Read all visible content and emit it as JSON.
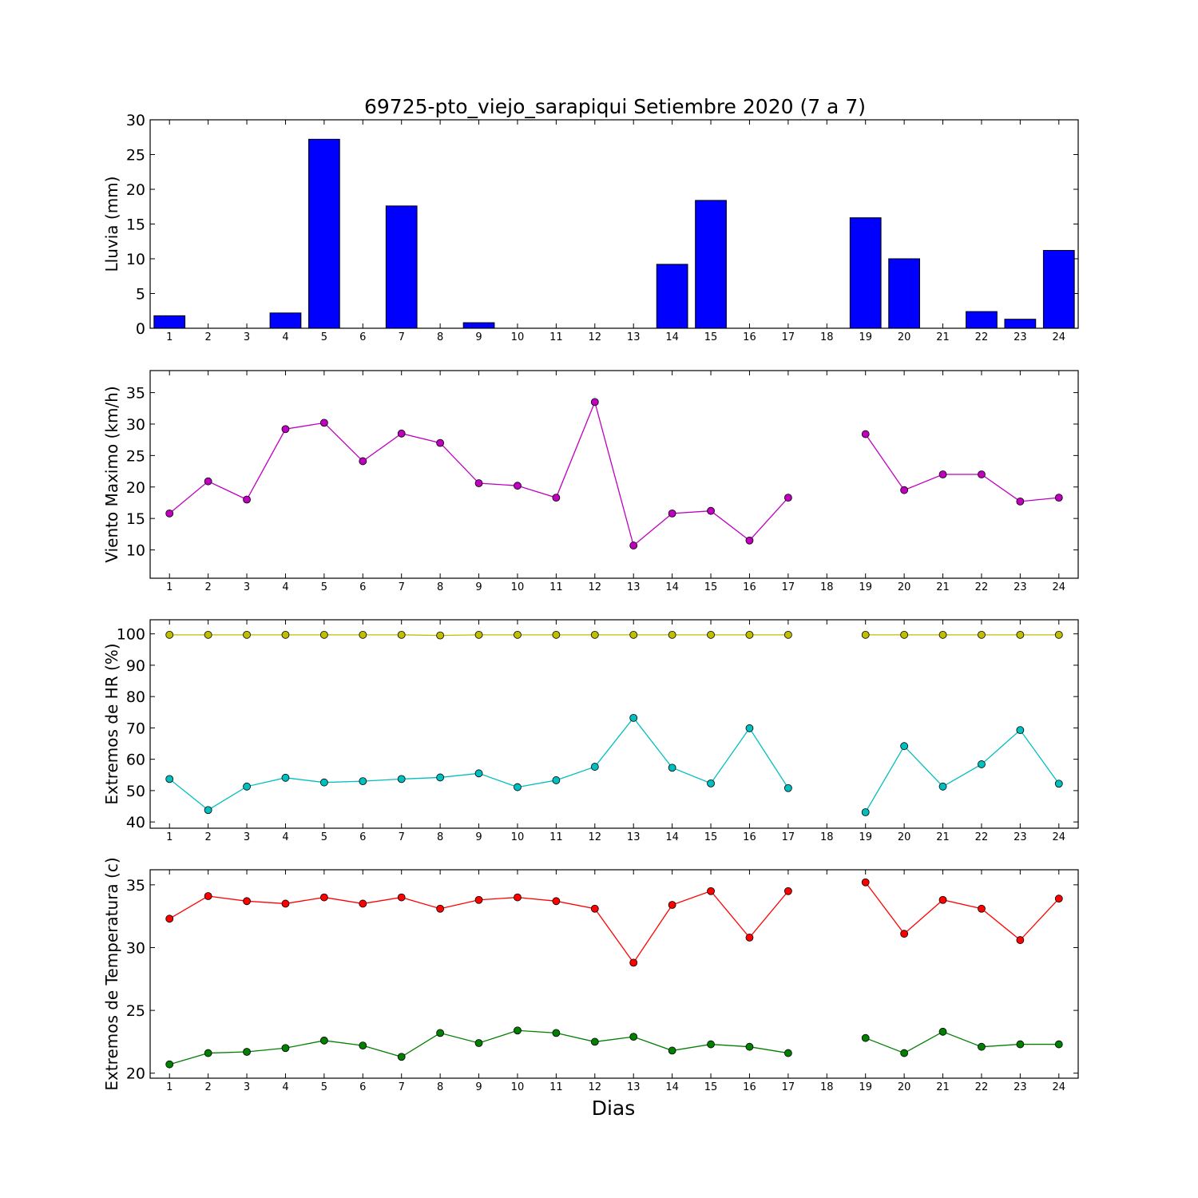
{
  "figure": {
    "title": "69725-pto_viejo_sarapiqui Setiembre 2020  (7 a 7)",
    "xlabel": "Dias"
  },
  "chart_data": [
    {
      "type": "bar",
      "ylabel": "Lluvia (mm)",
      "ylim": [
        0,
        30
      ],
      "yticks": [
        0,
        5,
        10,
        15,
        20,
        25,
        30
      ],
      "xlim": [
        0.5,
        24.5
      ],
      "categories": [
        "1",
        "2",
        "3",
        "4",
        "5",
        "6",
        "7",
        "8",
        "9",
        "10",
        "11",
        "12",
        "13",
        "14",
        "15",
        "16",
        "17",
        "18",
        "19",
        "20",
        "21",
        "22",
        "23",
        "24"
      ],
      "series": [
        {
          "color": "#0000ff",
          "values": [
            1.8,
            0,
            0,
            2.2,
            27.2,
            0,
            17.6,
            0,
            0.8,
            0,
            0,
            0,
            0,
            9.2,
            18.4,
            0,
            0,
            0,
            15.9,
            10.0,
            0,
            2.4,
            1.3,
            11.2
          ]
        }
      ]
    },
    {
      "type": "line",
      "ylabel": "Viento Maximo (km/h)",
      "ylim": [
        5.5,
        38.5
      ],
      "yticks": [
        10,
        15,
        20,
        25,
        30,
        35
      ],
      "xlim": [
        0.5,
        24.5
      ],
      "categories": [
        "1",
        "2",
        "3",
        "4",
        "5",
        "6",
        "7",
        "8",
        "9",
        "10",
        "11",
        "12",
        "13",
        "14",
        "15",
        "16",
        "17",
        "18",
        "19",
        "20",
        "21",
        "22",
        "23",
        "24"
      ],
      "series": [
        {
          "color": "#bf00bf",
          "values": [
            15.8,
            20.9,
            18.0,
            29.2,
            30.2,
            24.1,
            28.5,
            27.0,
            20.6,
            20.2,
            18.3,
            33.5,
            10.7,
            15.8,
            16.2,
            11.5,
            18.3,
            null,
            28.4,
            19.5,
            22.0,
            22.0,
            17.7,
            18.3
          ]
        }
      ]
    },
    {
      "type": "line",
      "ylabel": "Extremos de HR (%)",
      "ylim": [
        38,
        104.5
      ],
      "yticks": [
        40,
        50,
        60,
        70,
        80,
        90,
        100
      ],
      "xlim": [
        0.5,
        24.5
      ],
      "categories": [
        "1",
        "2",
        "3",
        "4",
        "5",
        "6",
        "7",
        "8",
        "9",
        "10",
        "11",
        "12",
        "13",
        "14",
        "15",
        "16",
        "17",
        "18",
        "19",
        "20",
        "21",
        "22",
        "23",
        "24"
      ],
      "series": [
        {
          "color": "#bfbf00",
          "values": [
            99.7,
            99.7,
            99.7,
            99.7,
            99.7,
            99.7,
            99.7,
            99.5,
            99.7,
            99.7,
            99.7,
            99.7,
            99.7,
            99.7,
            99.7,
            99.7,
            99.7,
            null,
            99.7,
            99.7,
            99.7,
            99.7,
            99.7,
            99.7
          ]
        },
        {
          "color": "#00bfbf",
          "values": [
            53.7,
            43.8,
            51.3,
            54.1,
            52.6,
            53.0,
            53.7,
            54.2,
            55.5,
            51.1,
            53.3,
            57.6,
            73.2,
            57.3,
            52.3,
            69.9,
            50.8,
            null,
            43.1,
            64.2,
            51.3,
            58.4,
            69.3,
            52.2
          ]
        }
      ]
    },
    {
      "type": "line",
      "ylabel": "Extremos de Temperatura (c)",
      "ylim": [
        19.6,
        36.2
      ],
      "yticks": [
        20,
        25,
        30,
        35
      ],
      "xlim": [
        0.5,
        24.5
      ],
      "categories": [
        "1",
        "2",
        "3",
        "4",
        "5",
        "6",
        "7",
        "8",
        "9",
        "10",
        "11",
        "12",
        "13",
        "14",
        "15",
        "16",
        "17",
        "18",
        "19",
        "20",
        "21",
        "22",
        "23",
        "24"
      ],
      "series": [
        {
          "color": "#ff0000",
          "values": [
            32.3,
            34.1,
            33.7,
            33.5,
            34.0,
            33.5,
            34.0,
            33.1,
            33.8,
            34.0,
            33.7,
            33.1,
            28.8,
            33.4,
            34.5,
            30.8,
            34.5,
            null,
            35.2,
            31.1,
            33.8,
            33.1,
            30.6,
            33.9
          ]
        },
        {
          "color": "#007f00",
          "values": [
            20.7,
            21.6,
            21.7,
            22.0,
            22.6,
            22.2,
            21.3,
            23.2,
            22.4,
            23.4,
            23.2,
            22.5,
            22.9,
            21.8,
            22.3,
            22.1,
            21.6,
            null,
            22.8,
            21.6,
            23.3,
            22.1,
            22.3,
            22.3
          ]
        }
      ]
    }
  ]
}
